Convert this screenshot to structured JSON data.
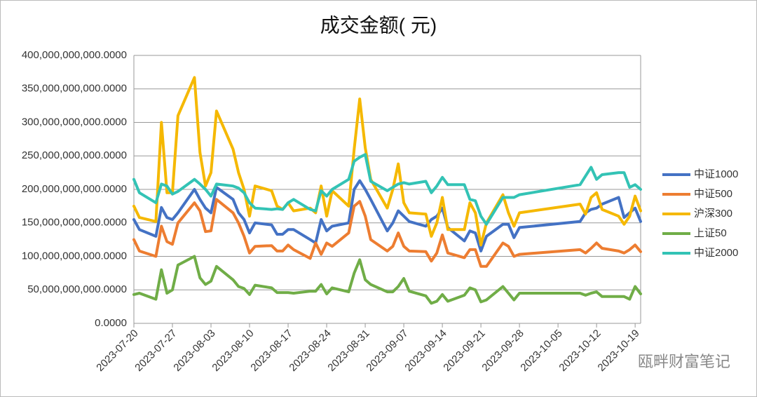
{
  "chart_data": {
    "type": "line",
    "title": "成交金额( 元)",
    "watermark": "瓯畔财富笔记",
    "x": [
      "2023-07-20",
      "2023-07-21",
      "2023-07-24",
      "2023-07-25",
      "2023-07-26",
      "2023-07-27",
      "2023-07-28",
      "2023-07-31",
      "2023-08-01",
      "2023-08-02",
      "2023-08-03",
      "2023-08-04",
      "2023-08-07",
      "2023-08-08",
      "2023-08-09",
      "2023-08-10",
      "2023-08-11",
      "2023-08-14",
      "2023-08-15",
      "2023-08-16",
      "2023-08-17",
      "2023-08-18",
      "2023-08-21",
      "2023-08-22",
      "2023-08-23",
      "2023-08-24",
      "2023-08-25",
      "2023-08-28",
      "2023-08-29",
      "2023-08-30",
      "2023-08-31",
      "2023-09-01",
      "2023-09-04",
      "2023-09-05",
      "2023-09-06",
      "2023-09-07",
      "2023-09-08",
      "2023-09-11",
      "2023-09-12",
      "2023-09-13",
      "2023-09-14",
      "2023-09-15",
      "2023-09-18",
      "2023-09-19",
      "2023-09-20",
      "2023-09-21",
      "2023-09-22",
      "2023-09-25",
      "2023-09-26",
      "2023-09-27",
      "2023-09-28",
      "2023-10-09",
      "2023-10-10",
      "2023-10-11",
      "2023-10-12",
      "2023-10-13",
      "2023-10-16",
      "2023-10-17",
      "2023-10-18",
      "2023-10-19",
      "2023-10-20"
    ],
    "series": [
      {
        "name": "中证1000",
        "color": "#4472c4",
        "values": [
          155000000000.0,
          140000000000.0,
          130000000000.0,
          173000000000.0,
          158000000000.0,
          155000000000.0,
          165000000000.0,
          200000000000.0,
          185000000000.0,
          172000000000.0,
          165000000000.0,
          203000000000.0,
          185000000000.0,
          165000000000.0,
          155000000000.0,
          135000000000.0,
          150000000000.0,
          147000000000.0,
          133000000000.0,
          133000000000.0,
          140000000000.0,
          140000000000.0,
          125000000000.0,
          120000000000.0,
          155000000000.0,
          138000000000.0,
          145000000000.0,
          150000000000.0,
          200000000000.0,
          213000000000.0,
          200000000000.0,
          185000000000.0,
          138000000000.0,
          150000000000.0,
          168000000000.0,
          160000000000.0,
          152000000000.0,
          145000000000.0,
          155000000000.0,
          160000000000.0,
          172000000000.0,
          143000000000.0,
          123000000000.0,
          138000000000.0,
          135000000000.0,
          108000000000.0,
          130000000000.0,
          148000000000.0,
          148000000000.0,
          128000000000.0,
          143000000000.0,
          152000000000.0,
          165000000000.0,
          170000000000.0,
          172000000000.0,
          178000000000.0,
          188000000000.0,
          158000000000.0,
          165000000000.0,
          172000000000.0,
          152000000000.0
        ]
      },
      {
        "name": "中证500",
        "color": "#ed7d31",
        "values": [
          125000000000.0,
          108000000000.0,
          100000000000.0,
          145000000000.0,
          122000000000.0,
          118000000000.0,
          150000000000.0,
          180000000000.0,
          168000000000.0,
          137000000000.0,
          138000000000.0,
          185000000000.0,
          165000000000.0,
          150000000000.0,
          130000000000.0,
          105000000000.0,
          115000000000.0,
          116000000000.0,
          108000000000.0,
          108000000000.0,
          117000000000.0,
          110000000000.0,
          97000000000.0,
          120000000000.0,
          103000000000.0,
          120000000000.0,
          115000000000.0,
          135000000000.0,
          175000000000.0,
          182000000000.0,
          160000000000.0,
          125000000000.0,
          108000000000.0,
          115000000000.0,
          135000000000.0,
          115000000000.0,
          108000000000.0,
          107000000000.0,
          93000000000.0,
          105000000000.0,
          132000000000.0,
          105000000000.0,
          98000000000.0,
          110000000000.0,
          110000000000.0,
          85000000000.0,
          85000000000.0,
          120000000000.0,
          115000000000.0,
          100000000000.0,
          103000000000.0,
          110000000000.0,
          105000000000.0,
          112000000000.0,
          120000000000.0,
          112000000000.0,
          108000000000.0,
          105000000000.0,
          110000000000.0,
          117000000000.0,
          107000000000.0
        ]
      },
      {
        "name": "沪深300",
        "color": "#f5b800",
        "values": [
          175000000000.0,
          158000000000.0,
          152000000000.0,
          300000000000.0,
          195000000000.0,
          195000000000.0,
          310000000000.0,
          367000000000.0,
          255000000000.0,
          205000000000.0,
          225000000000.0,
          317000000000.0,
          260000000000.0,
          225000000000.0,
          200000000000.0,
          160000000000.0,
          205000000000.0,
          198000000000.0,
          175000000000.0,
          170000000000.0,
          180000000000.0,
          168000000000.0,
          172000000000.0,
          165000000000.0,
          205000000000.0,
          160000000000.0,
          198000000000.0,
          175000000000.0,
          260000000000.0,
          335000000000.0,
          262000000000.0,
          215000000000.0,
          172000000000.0,
          200000000000.0,
          238000000000.0,
          180000000000.0,
          165000000000.0,
          163000000000.0,
          130000000000.0,
          150000000000.0,
          188000000000.0,
          140000000000.0,
          140000000000.0,
          180000000000.0,
          165000000000.0,
          117000000000.0,
          150000000000.0,
          192000000000.0,
          165000000000.0,
          145000000000.0,
          165000000000.0,
          178000000000.0,
          163000000000.0,
          188000000000.0,
          195000000000.0,
          170000000000.0,
          160000000000.0,
          148000000000.0,
          160000000000.0,
          190000000000.0,
          168000000000.0
        ]
      },
      {
        "name": "上证50",
        "color": "#70ad47",
        "values": [
          43000000000.0,
          45000000000.0,
          36000000000.0,
          80000000000.0,
          45000000000.0,
          50000000000.0,
          87000000000.0,
          100000000000.0,
          68000000000.0,
          58000000000.0,
          63000000000.0,
          85000000000.0,
          65000000000.0,
          55000000000.0,
          52000000000.0,
          43000000000.0,
          57000000000.0,
          53000000000.0,
          46000000000.0,
          46000000000.0,
          46000000000.0,
          45000000000.0,
          48000000000.0,
          48000000000.0,
          58000000000.0,
          44000000000.0,
          53000000000.0,
          47000000000.0,
          75000000000.0,
          95000000000.0,
          65000000000.0,
          58000000000.0,
          47000000000.0,
          47000000000.0,
          55000000000.0,
          67000000000.0,
          48000000000.0,
          41000000000.0,
          30000000000.0,
          33000000000.0,
          43000000000.0,
          33000000000.0,
          42000000000.0,
          53000000000.0,
          50000000000.0,
          32000000000.0,
          35000000000.0,
          55000000000.0,
          45000000000.0,
          35000000000.0,
          45000000000.0,
          45000000000.0,
          42000000000.0,
          45000000000.0,
          47000000000.0,
          40000000000.0,
          40000000000.0,
          40000000000.0,
          36000000000.0,
          55000000000.0,
          44000000000.0
        ]
      },
      {
        "name": "中证2000",
        "color": "#33c3b5",
        "values": [
          215000000000.0,
          195000000000.0,
          180000000000.0,
          208000000000.0,
          205000000000.0,
          193000000000.0,
          197000000000.0,
          215000000000.0,
          208000000000.0,
          200000000000.0,
          190000000000.0,
          208000000000.0,
          205000000000.0,
          202000000000.0,
          195000000000.0,
          180000000000.0,
          172000000000.0,
          170000000000.0,
          171000000000.0,
          170000000000.0,
          180000000000.0,
          185000000000.0,
          170000000000.0,
          168000000000.0,
          198000000000.0,
          190000000000.0,
          200000000000.0,
          215000000000.0,
          242000000000.0,
          248000000000.0,
          252000000000.0,
          212000000000.0,
          198000000000.0,
          203000000000.0,
          208000000000.0,
          210000000000.0,
          208000000000.0,
          212000000000.0,
          195000000000.0,
          205000000000.0,
          218000000000.0,
          207000000000.0,
          207000000000.0,
          185000000000.0,
          183000000000.0,
          160000000000.0,
          148000000000.0,
          188000000000.0,
          188000000000.0,
          188000000000.0,
          192000000000.0,
          207000000000.0,
          220000000000.0,
          233000000000.0,
          215000000000.0,
          222000000000.0,
          225000000000.0,
          225000000000.0,
          203000000000.0,
          207000000000.0,
          200000000000.0
        ]
      }
    ],
    "xlim": [
      "2023-07-20",
      "2023-10-20"
    ],
    "xticks": [
      "2023-07-20",
      "2023-07-27",
      "2023-08-03",
      "2023-08-10",
      "2023-08-17",
      "2023-08-24",
      "2023-08-31",
      "2023-09-07",
      "2023-09-14",
      "2023-09-21",
      "2023-09-28",
      "2023-10-05",
      "2023-10-12",
      "2023-10-19"
    ],
    "ylim": [
      0,
      400000000000
    ],
    "yticks": [
      {
        "value": 0,
        "label": "0.0000"
      },
      {
        "value": 50000000000,
        "label": "50,000,000,000.0000"
      },
      {
        "value": 100000000000,
        "label": "100,000,000,000.0000"
      },
      {
        "value": 150000000000,
        "label": "150,000,000,000.0000"
      },
      {
        "value": 200000000000,
        "label": "200,000,000,000.0000"
      },
      {
        "value": 250000000000,
        "label": "250,000,000,000.0000"
      },
      {
        "value": 300000000000,
        "label": "300,000,000,000.0000"
      },
      {
        "value": 350000000000,
        "label": "350,000,000,000.0000"
      },
      {
        "value": 400000000000,
        "label": "400,000,000,000.0000"
      }
    ],
    "grid": true,
    "legend": "right"
  }
}
